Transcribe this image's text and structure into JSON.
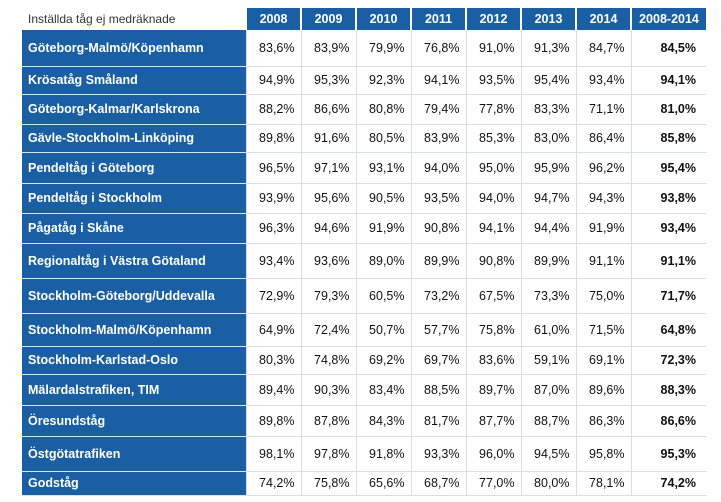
{
  "table": {
    "header_label": "Inställda tåg ej medräknade",
    "years": [
      "2008",
      "2009",
      "2010",
      "2011",
      "2012",
      "2013",
      "2014",
      "2008-2014"
    ],
    "rows": [
      {
        "name": "Göteborg-Malmö/Köpenhamn",
        "values": [
          "83,6%",
          "83,9%",
          "79,9%",
          "76,8%",
          "91,0%",
          "91,3%",
          "84,7%"
        ],
        "total": "84,5%"
      },
      {
        "name": "Krösatåg Småland",
        "values": [
          "94,9%",
          "95,3%",
          "92,3%",
          "94,1%",
          "93,5%",
          "95,4%",
          "93,4%"
        ],
        "total": "94,1%"
      },
      {
        "name": "Göteborg-Kalmar/Karlskrona",
        "values": [
          "88,2%",
          "86,6%",
          "80,8%",
          "79,4%",
          "77,8%",
          "83,3%",
          "71,1%"
        ],
        "total": "81,0%"
      },
      {
        "name": "Gävle-Stockholm-Linköping",
        "values": [
          "89,8%",
          "91,6%",
          "80,5%",
          "83,9%",
          "85,3%",
          "83,0%",
          "86,4%"
        ],
        "total": "85,8%"
      },
      {
        "name": "Pendeltåg i Göteborg",
        "values": [
          "96,5%",
          "97,1%",
          "93,1%",
          "94,0%",
          "95,0%",
          "95,9%",
          "96,2%"
        ],
        "total": "95,4%"
      },
      {
        "name": "Pendeltåg i Stockholm",
        "values": [
          "93,9%",
          "95,6%",
          "90,5%",
          "93,5%",
          "94,0%",
          "94,7%",
          "94,3%"
        ],
        "total": "93,8%"
      },
      {
        "name": "Pågatåg i Skåne",
        "values": [
          "96,3%",
          "94,6%",
          "91,9%",
          "90,8%",
          "94,1%",
          "94,4%",
          "91,9%"
        ],
        "total": "93,4%"
      },
      {
        "name": "Regionaltåg i Västra Götaland",
        "values": [
          "93,4%",
          "93,6%",
          "89,0%",
          "89,9%",
          "90,8%",
          "89,9%",
          "91,1%"
        ],
        "total": "91,1%"
      },
      {
        "name": "Stockholm-Göteborg/Uddevalla",
        "values": [
          "72,9%",
          "79,3%",
          "60,5%",
          "73,2%",
          "67,5%",
          "73,3%",
          "75,0%"
        ],
        "total": "71,7%"
      },
      {
        "name": "Stockholm-Malmö/Köpenhamn",
        "values": [
          "64,9%",
          "72,4%",
          "50,7%",
          "57,7%",
          "75,8%",
          "61,0%",
          "71,5%"
        ],
        "total": "64,8%"
      },
      {
        "name": "Stockholm-Karlstad-Oslo",
        "values": [
          "80,3%",
          "74,8%",
          "69,2%",
          "69,7%",
          "83,6%",
          "59,1%",
          "69,1%"
        ],
        "total": "72,3%"
      },
      {
        "name": "Mälardalstrafiken, TIM",
        "values": [
          "89,4%",
          "90,3%",
          "83,4%",
          "88,5%",
          "89,7%",
          "87,0%",
          "89,6%"
        ],
        "total": "88,3%"
      },
      {
        "name": "Öresundståg",
        "values": [
          "89,8%",
          "87,8%",
          "84,3%",
          "81,7%",
          "87,7%",
          "88,7%",
          "86,3%"
        ],
        "total": "86,6%"
      },
      {
        "name": "Östgötatrafiken",
        "values": [
          "98,1%",
          "97,8%",
          "91,8%",
          "93,3%",
          "96,0%",
          "94,5%",
          "95,8%"
        ],
        "total": "95,3%"
      },
      {
        "name": "Godståg",
        "values": [
          "74,2%",
          "75,8%",
          "65,6%",
          "68,7%",
          "77,0%",
          "80,0%",
          "78,1%"
        ],
        "total": "74,2%"
      }
    ]
  }
}
